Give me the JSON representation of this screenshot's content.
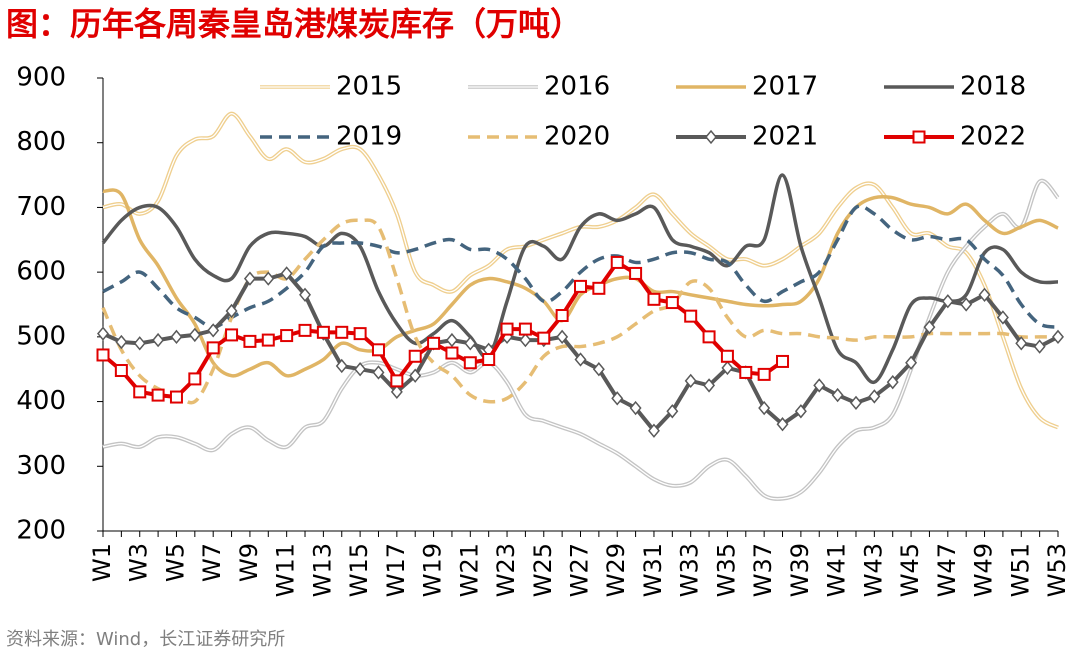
{
  "chart_data": {
    "type": "line",
    "title": "图：历年各周秦皇岛港煤炭库存（万吨）",
    "source": "资料来源：Wind，长江证券研究所",
    "categories": [
      "W1",
      null,
      "W3",
      null,
      "W5",
      null,
      "W7",
      null,
      "W9",
      null,
      "W11",
      null,
      "W13",
      null,
      "W15",
      null,
      "W17",
      null,
      "W19",
      null,
      "W21",
      null,
      "W23",
      null,
      "W25",
      null,
      "W27",
      null,
      "W29",
      null,
      "W31",
      null,
      "W33",
      null,
      "W35",
      null,
      "W37",
      null,
      "W39",
      null,
      "W41",
      null,
      "W43",
      null,
      "W45",
      null,
      "W47",
      null,
      "W49",
      null,
      "W51",
      null,
      "W53"
    ],
    "ylim": [
      200,
      900
    ],
    "yticks": [
      200,
      300,
      400,
      500,
      600,
      700,
      800,
      900
    ],
    "series": [
      {
        "name": "2015",
        "color": "#efcf8f",
        "style": "double",
        "values": [
          700,
          705,
          690,
          710,
          780,
          805,
          810,
          845,
          810,
          775,
          790,
          770,
          775,
          790,
          790,
          750,
          690,
          600,
          580,
          570,
          595,
          610,
          635,
          640,
          650,
          660,
          670,
          670,
          680,
          700,
          720,
          690,
          660,
          640,
          620,
          620,
          610,
          620,
          640,
          660,
          700,
          730,
          735,
          700,
          660,
          660,
          640,
          630,
          580,
          500,
          420,
          375,
          360
        ]
      },
      {
        "name": "2016",
        "color": "#c4c4c4",
        "style": "double",
        "values": [
          330,
          335,
          330,
          345,
          345,
          335,
          325,
          350,
          360,
          340,
          330,
          360,
          370,
          420,
          455,
          460,
          450,
          440,
          445,
          460,
          445,
          460,
          430,
          380,
          370,
          360,
          350,
          335,
          320,
          300,
          280,
          270,
          275,
          300,
          310,
          285,
          255,
          250,
          260,
          290,
          330,
          355,
          360,
          380,
          450,
          530,
          600,
          640,
          670,
          690,
          670,
          740,
          715
        ]
      },
      {
        "name": "2017",
        "color": "#e0b565",
        "style": "solid",
        "values": [
          725,
          720,
          650,
          610,
          560,
          520,
          460,
          440,
          450,
          460,
          440,
          450,
          465,
          490,
          480,
          480,
          500,
          510,
          520,
          550,
          580,
          590,
          585,
          575,
          555,
          525,
          565,
          580,
          590,
          590,
          570,
          570,
          565,
          560,
          555,
          550,
          548,
          550,
          555,
          590,
          660,
          700,
          715,
          715,
          705,
          700,
          690,
          705,
          680,
          660,
          670,
          680,
          668
        ]
      },
      {
        "name": "2018",
        "color": "#595959",
        "style": "solid",
        "values": [
          645,
          680,
          700,
          700,
          670,
          620,
          595,
          590,
          640,
          660,
          660,
          655,
          640,
          660,
          640,
          570,
          520,
          490,
          505,
          525,
          500,
          470,
          555,
          640,
          640,
          620,
          670,
          690,
          680,
          690,
          700,
          650,
          640,
          630,
          610,
          640,
          650,
          750,
          640,
          560,
          480,
          460,
          430,
          480,
          550,
          560,
          555,
          565,
          630,
          635,
          600,
          585,
          585
        ]
      },
      {
        "name": "2019",
        "color": "#44647e",
        "style": "dashed",
        "values": [
          570,
          585,
          600,
          575,
          545,
          530,
          515,
          530,
          545,
          555,
          575,
          600,
          640,
          645,
          645,
          640,
          630,
          635,
          645,
          650,
          635,
          635,
          620,
          590,
          555,
          570,
          600,
          620,
          625,
          615,
          620,
          630,
          630,
          620,
          615,
          580,
          555,
          570,
          585,
          600,
          650,
          700,
          690,
          665,
          650,
          655,
          650,
          650,
          620,
          595,
          550,
          520,
          515
        ]
      },
      {
        "name": "2020",
        "color": "#e6bd74",
        "style": "dashed",
        "values": [
          545,
          480,
          440,
          420,
          410,
          400,
          450,
          530,
          590,
          600,
          590,
          620,
          650,
          675,
          680,
          670,
          590,
          500,
          460,
          440,
          410,
          400,
          405,
          430,
          470,
          485,
          485,
          490,
          500,
          520,
          540,
          550,
          585,
          575,
          530,
          500,
          510,
          505,
          505,
          500,
          498,
          495,
          500,
          500,
          500,
          505,
          505,
          505,
          505,
          505,
          500,
          500,
          500
        ]
      },
      {
        "name": "2021",
        "color": "#595959",
        "style": "solid",
        "marker": "diamond",
        "values": [
          505,
          492,
          490,
          495,
          500,
          503,
          510,
          540,
          590,
          590,
          598,
          565,
          505,
          455,
          450,
          445,
          415,
          440,
          490,
          495,
          490,
          480,
          500,
          495,
          495,
          500,
          465,
          450,
          405,
          390,
          355,
          385,
          432,
          425,
          452,
          445,
          390,
          365,
          385,
          425,
          410,
          398,
          408,
          430,
          460,
          515,
          555,
          550,
          565,
          530,
          490,
          485,
          500
        ]
      },
      {
        "name": "2022",
        "color": "#e00000",
        "style": "solid",
        "marker": "square",
        "values": [
          472,
          448,
          415,
          410,
          407,
          435,
          483,
          503,
          493,
          495,
          502,
          510,
          507,
          507,
          505,
          480,
          432,
          470,
          490,
          475,
          460,
          465,
          512,
          512,
          498,
          533,
          578,
          575,
          615,
          598,
          558,
          553,
          532,
          500,
          470,
          445,
          442,
          462,
          null,
          null,
          null,
          null,
          null,
          null,
          null,
          null,
          null,
          null,
          null,
          null,
          null,
          null,
          null
        ]
      }
    ]
  }
}
